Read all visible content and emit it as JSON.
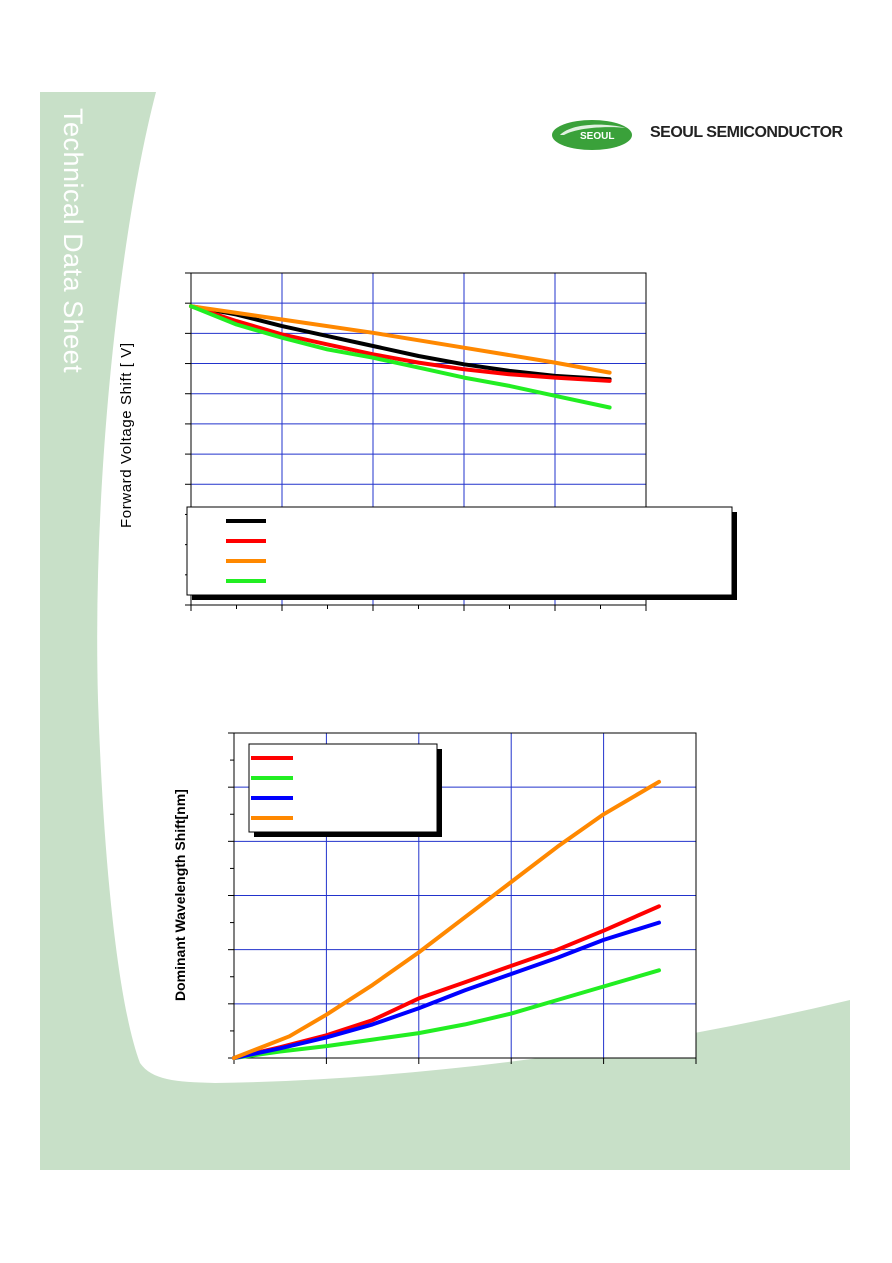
{
  "page": {
    "side_title": "Technical Data Sheet",
    "brand_text": "SEOUL SEMICONDUCTOR",
    "logo_text": "SEOUL",
    "colors": {
      "panel_green": "#c8e0c8",
      "logo_green": "#3aa13a",
      "grid_blue": "#2233cc"
    }
  },
  "chart_data": [
    {
      "type": "line",
      "ylabel": "Forward Voltage Shift [ V]",
      "xlim": [
        0,
        10
      ],
      "ylim": [
        0,
        10
      ],
      "grid": true,
      "legend_position": "bottom",
      "series": [
        {
          "color": "#000000",
          "x": [
            0,
            1,
            2,
            3,
            4,
            5,
            6,
            7,
            8,
            9.2
          ],
          "y": [
            9.0,
            8.75,
            8.4,
            8.1,
            7.8,
            7.5,
            7.25,
            7.05,
            6.9,
            6.8
          ]
        },
        {
          "color": "#ff0000",
          "x": [
            0,
            1,
            2,
            3,
            4,
            5,
            6,
            7,
            8,
            9.2
          ],
          "y": [
            9.0,
            8.55,
            8.15,
            7.85,
            7.55,
            7.3,
            7.1,
            6.95,
            6.85,
            6.75
          ]
        },
        {
          "color": "#ff8800",
          "x": [
            0,
            2,
            4,
            6,
            8,
            9.2
          ],
          "y": [
            9.0,
            8.6,
            8.2,
            7.75,
            7.3,
            7.0
          ]
        },
        {
          "color": "#22ee22",
          "x": [
            0,
            1,
            2,
            3,
            4,
            5,
            6,
            7,
            8,
            9.2
          ],
          "y": [
            9.0,
            8.45,
            8.05,
            7.7,
            7.45,
            7.15,
            6.85,
            6.6,
            6.3,
            5.95
          ]
        }
      ]
    },
    {
      "type": "line",
      "ylabel": "Dominant Wavelength Shift[nm]",
      "xlim": [
        0,
        5
      ],
      "ylim": [
        0,
        6
      ],
      "grid": true,
      "legend_position": "top-left",
      "series": [
        {
          "color": "#ff0000",
          "x": [
            0,
            0.5,
            1,
            1.5,
            2,
            2.5,
            3,
            3.5,
            4,
            4.6
          ],
          "y": [
            0,
            0.2,
            0.42,
            0.7,
            1.1,
            1.4,
            1.7,
            2.0,
            2.35,
            2.8
          ]
        },
        {
          "color": "#22ee22",
          "x": [
            0,
            0.5,
            1,
            1.5,
            2,
            2.5,
            3,
            3.5,
            4,
            4.6
          ],
          "y": [
            0,
            0.12,
            0.22,
            0.34,
            0.46,
            0.62,
            0.82,
            1.07,
            1.32,
            1.62
          ]
        },
        {
          "color": "#0000ff",
          "x": [
            0,
            0.5,
            1,
            1.5,
            2,
            2.5,
            3,
            3.5,
            4,
            4.6
          ],
          "y": [
            0,
            0.18,
            0.38,
            0.62,
            0.92,
            1.25,
            1.55,
            1.85,
            2.18,
            2.5
          ]
        },
        {
          "color": "#ff8800",
          "x": [
            0,
            0.6,
            1,
            1.5,
            2,
            2.5,
            3,
            3.5,
            4,
            4.6
          ],
          "y": [
            0,
            0.4,
            0.8,
            1.35,
            1.95,
            2.6,
            3.25,
            3.9,
            4.5,
            5.1
          ]
        }
      ]
    }
  ]
}
